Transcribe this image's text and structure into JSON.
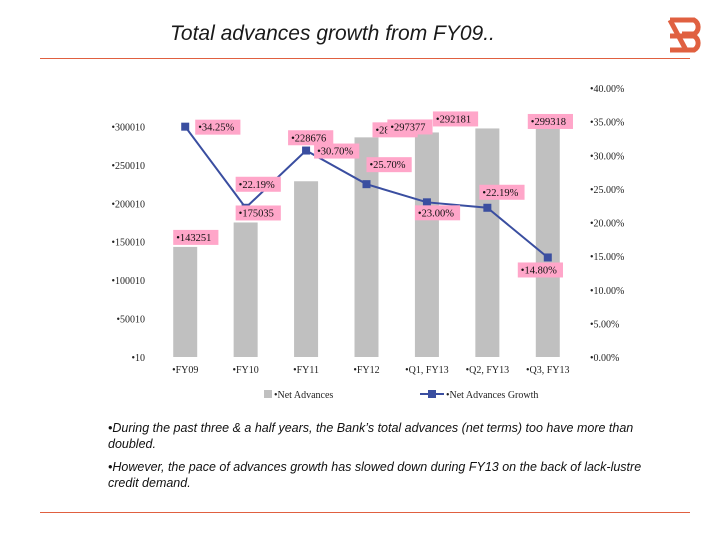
{
  "title": "Total advances growth from FY09..",
  "bullets": [
    "•During the past three & a half years, the Bank’s total advances (net terms) too have  more than doubled.",
    "•However, the pace of advances growth has slowed down during FY13 on the back of  lack-lustre credit demand."
  ],
  "colors": {
    "bars": "#c0c0c0",
    "line": "#3a4ea0",
    "label_bg": "#ffa6c9",
    "accent": "#e06040"
  },
  "chart_data": {
    "type": "bar",
    "categories": [
      "•FY09",
      "•FY10",
      "•FY11",
      "•FY12",
      "•Q1, FY13",
      "•Q2, FY13",
      "•Q3, FY13"
    ],
    "series": [
      {
        "name": "•Net Advances",
        "type": "bar",
        "axis": "left",
        "values": [
          143251,
          175035,
          228676,
          285813,
          292181,
          297377,
          299318
        ],
        "labels": [
          "•143251",
          "•175035",
          "•228676",
          "•285813",
          "•292181",
          "•297377",
          "•299318"
        ]
      },
      {
        "name": "•Net Advances Growth",
        "type": "line",
        "axis": "right",
        "values": [
          34.25,
          22.19,
          30.7,
          25.7,
          23.0,
          22.19,
          14.8
        ],
        "labels": [
          "•34.25%",
          "•22.19%",
          "•30.70%",
          "•25.70%",
          "•23.00%",
          "•22.19%",
          "•14.80%"
        ]
      }
    ],
    "y_left": {
      "ylim": [
        10,
        350010
      ],
      "ticks": [
        "•10",
        "•50010",
        "•100010",
        "•150010",
        "•200010",
        "•250010",
        "•300010"
      ]
    },
    "y_right": {
      "ylim": [
        0,
        40
      ],
      "ticks": [
        "•0.00%",
        "•5.00%",
        "•10.00%",
        "•15.00%",
        "•20.00%",
        "•25.00%",
        "•30.00%",
        "•35.00%",
        "•40.00%"
      ]
    },
    "legend": "bottom",
    "grid": false
  }
}
